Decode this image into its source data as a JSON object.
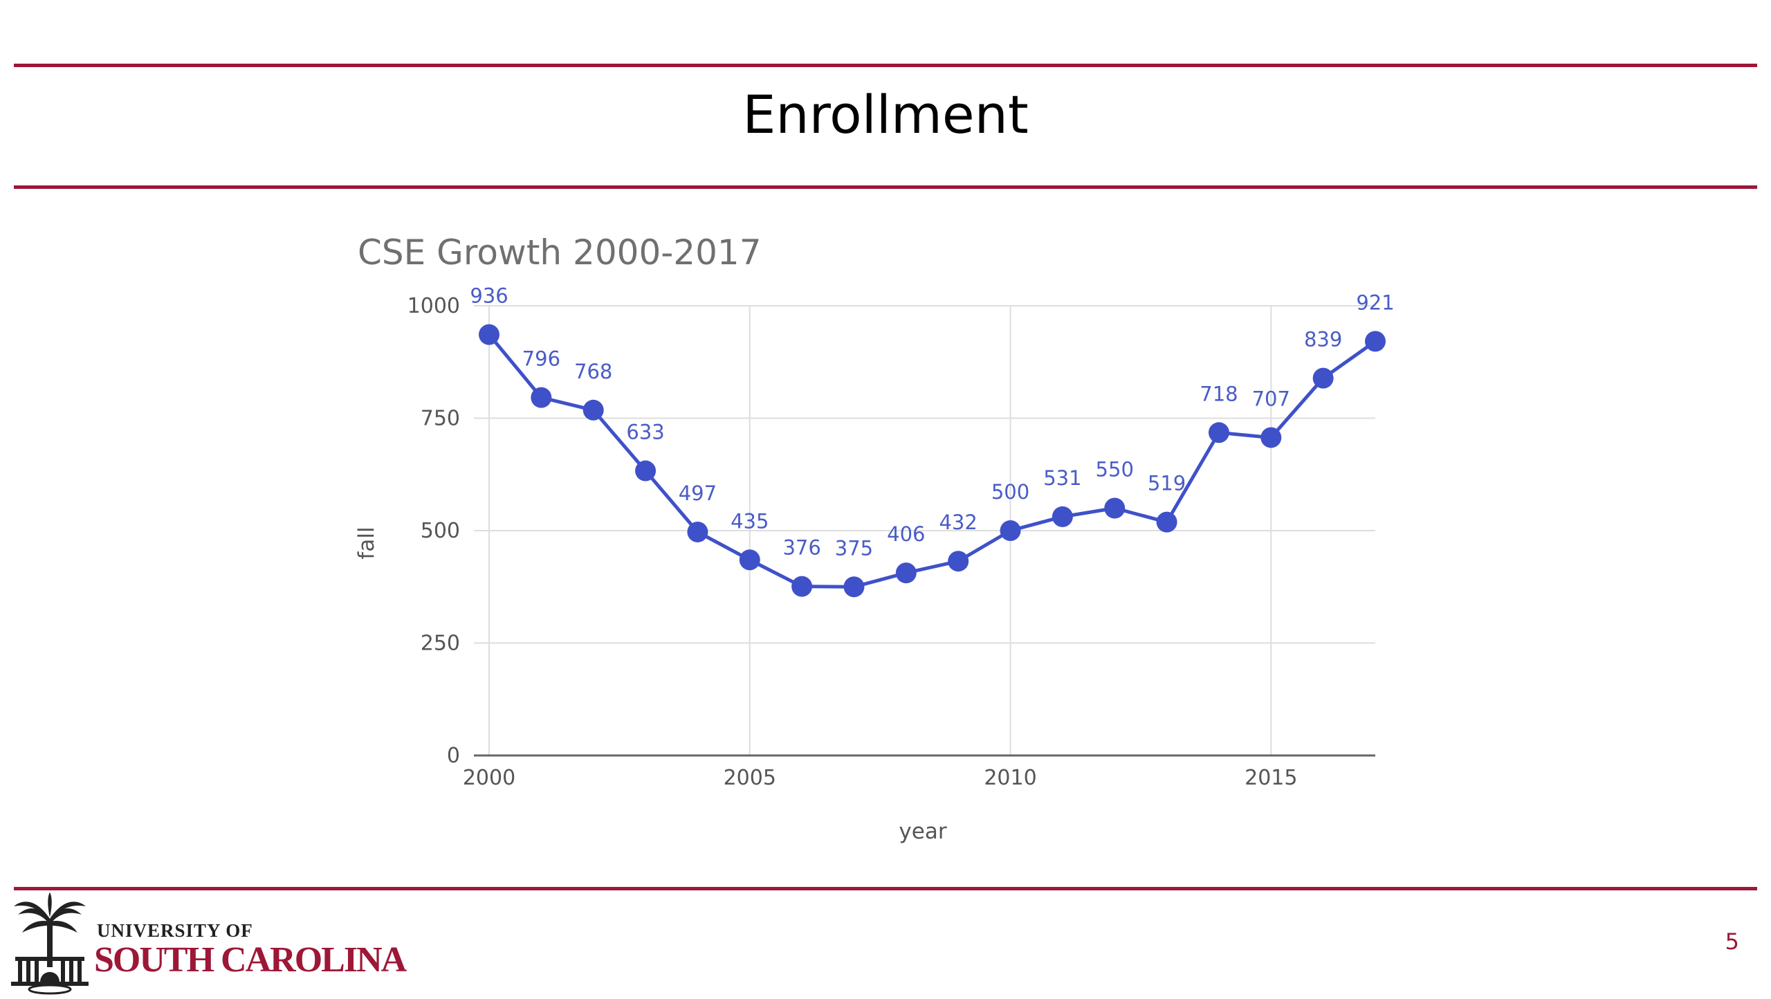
{
  "slide": {
    "title": "Enrollment",
    "page_number": "5"
  },
  "logo": {
    "line1": "UNIVERSITY OF",
    "line2": "SOUTH CAROLINA"
  },
  "colors": {
    "accent": "#9d1737",
    "series": "#3f51c9",
    "label": "#4a5cc7",
    "grid": "#dddddd"
  },
  "chart_data": {
    "type": "line",
    "title": "CSE Growth 2000-2017",
    "xlabel": "year",
    "ylabel": "fall",
    "xlim": [
      2000,
      2017
    ],
    "ylim": [
      0,
      1000
    ],
    "xticks": [
      2000,
      2005,
      2010,
      2015
    ],
    "yticks": [
      0,
      250,
      500,
      750,
      1000
    ],
    "grid": true,
    "legend": "none",
    "x": [
      2000,
      2001,
      2002,
      2003,
      2004,
      2005,
      2006,
      2007,
      2008,
      2009,
      2010,
      2011,
      2012,
      2013,
      2014,
      2015,
      2016,
      2017
    ],
    "series": [
      {
        "values": [
          936,
          796,
          768,
          633,
          497,
          435,
          376,
          375,
          406,
          432,
          500,
          531,
          550,
          519,
          718,
          707,
          839,
          921
        ]
      }
    ]
  }
}
